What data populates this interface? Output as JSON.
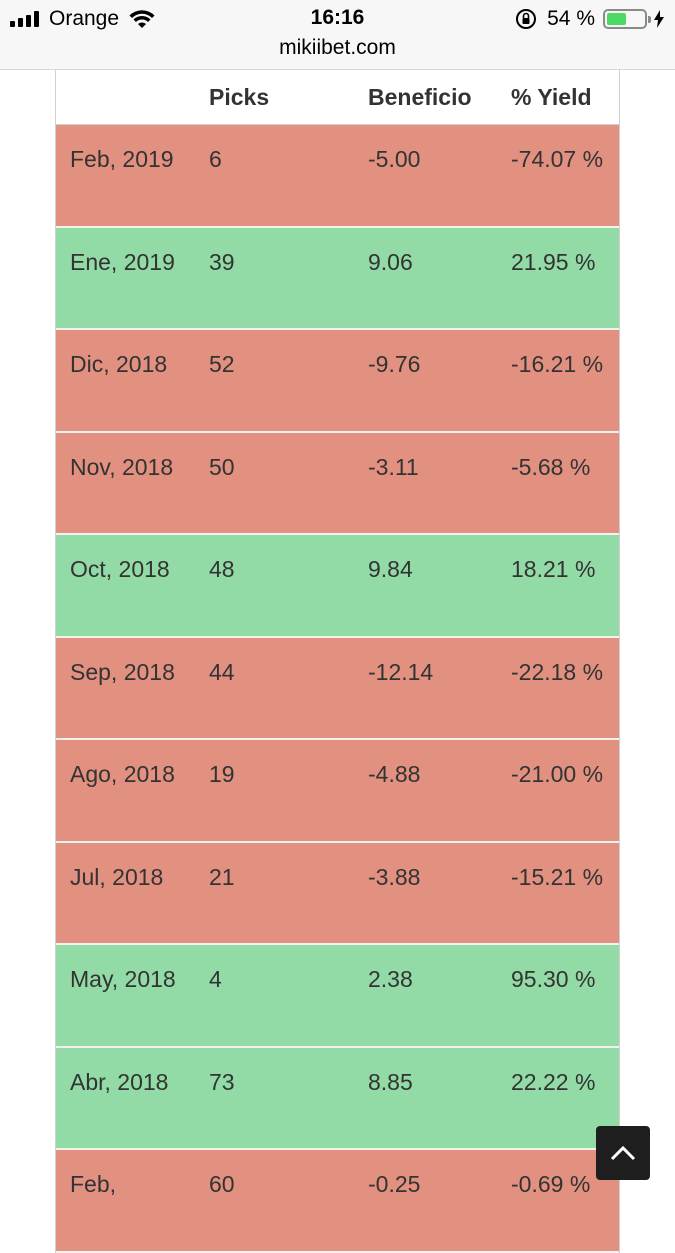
{
  "status_bar": {
    "carrier": "Orange",
    "time": "16:16",
    "url": "mikiibet.com",
    "battery_percent": "54 %"
  },
  "table": {
    "headers": [
      "",
      "Picks",
      "Beneficio",
      "% Yield"
    ],
    "rows": [
      {
        "month": "Feb, 2019",
        "picks": "6",
        "beneficio": "-5.00",
        "yield": "-74.07 %",
        "status": "negative"
      },
      {
        "month": "Ene, 2019",
        "picks": "39",
        "beneficio": "9.06",
        "yield": "21.95 %",
        "status": "positive"
      },
      {
        "month": "Dic, 2018",
        "picks": "52",
        "beneficio": "-9.76",
        "yield": "-16.21 %",
        "status": "negative"
      },
      {
        "month": "Nov, 2018",
        "picks": "50",
        "beneficio": "-3.11",
        "yield": "-5.68 %",
        "status": "negative"
      },
      {
        "month": "Oct, 2018",
        "picks": "48",
        "beneficio": "9.84",
        "yield": "18.21 %",
        "status": "positive"
      },
      {
        "month": "Sep, 2018",
        "picks": "44",
        "beneficio": "-12.14",
        "yield": "-22.18 %",
        "status": "negative"
      },
      {
        "month": "Ago, 2018",
        "picks": "19",
        "beneficio": "-4.88",
        "yield": "-21.00 %",
        "status": "negative"
      },
      {
        "month": "Jul, 2018",
        "picks": "21",
        "beneficio": "-3.88",
        "yield": "-15.21 %",
        "status": "negative"
      },
      {
        "month": "May, 2018",
        "picks": "4",
        "beneficio": "2.38",
        "yield": "95.30 %",
        "status": "positive"
      },
      {
        "month": "Abr, 2018",
        "picks": "73",
        "beneficio": "8.85",
        "yield": "22.22 %",
        "status": "positive"
      },
      {
        "month": "Feb,",
        "picks": "60",
        "beneficio": "-0.25",
        "yield": "-0.69 %",
        "status": "negative"
      }
    ]
  },
  "colors": {
    "negative_row": "#e29080",
    "positive_row": "#92dba6",
    "battery": "#4cd964"
  },
  "icons": {
    "scroll_top": "chevron-up-icon"
  }
}
